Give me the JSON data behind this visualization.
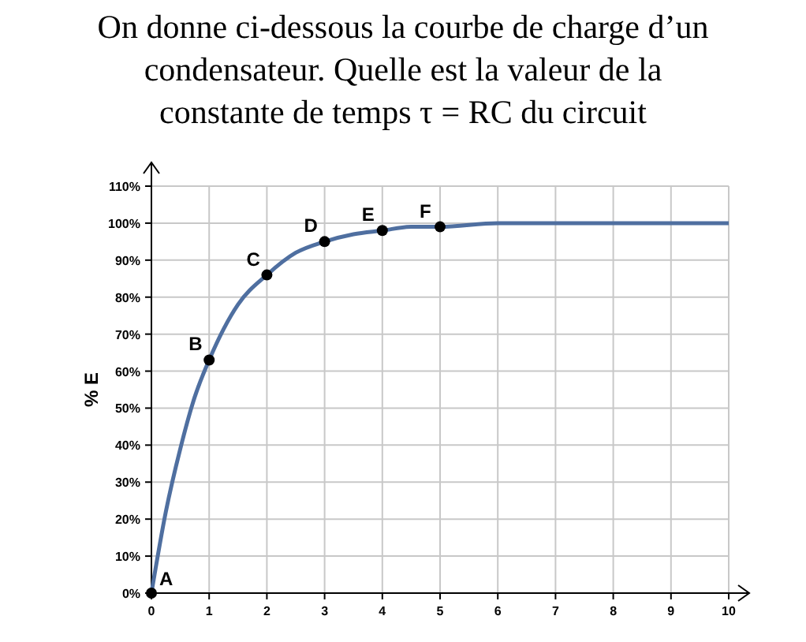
{
  "chart_data": {
    "type": "line",
    "title": "On donne ci-dessous la courbe de charge d’un condensateur. Quelle est la valeur de la constante de temps τ = RC du circuit",
    "ylabel": "% E",
    "xlim": [
      0,
      10
    ],
    "xticks": [
      0,
      1,
      2,
      3,
      4,
      5,
      6,
      7,
      8,
      9,
      10
    ],
    "ylim": [
      0,
      110
    ],
    "yticks": [
      {
        "value": 0,
        "label": "0%"
      },
      {
        "value": 10,
        "label": "10%"
      },
      {
        "value": 20,
        "label": "20%"
      },
      {
        "value": 30,
        "label": "30%"
      },
      {
        "value": 40,
        "label": "40%"
      },
      {
        "value": 50,
        "label": "50%"
      },
      {
        "value": 60,
        "label": "60%"
      },
      {
        "value": 70,
        "label": "70%"
      },
      {
        "value": 80,
        "label": "80%"
      },
      {
        "value": 90,
        "label": "90%"
      },
      {
        "value": 100,
        "label": "100%"
      },
      {
        "value": 110,
        "label": "110%"
      }
    ],
    "grid": true,
    "series": [
      {
        "color": "#4f6fa0",
        "marker": "none",
        "x": [
          0,
          0.25,
          0.5,
          0.75,
          1,
          1.5,
          2,
          2.5,
          3,
          3.5,
          4,
          4.5,
          5,
          6,
          7,
          8,
          9,
          10
        ],
        "values": [
          0,
          22,
          39,
          53,
          63,
          78,
          86,
          92,
          95,
          97,
          98,
          99,
          99,
          100,
          100,
          100,
          100,
          100
        ]
      },
      {
        "type": "scatter",
        "color": "#000000",
        "marker": "circle",
        "x": [
          0,
          1,
          2,
          3,
          4,
          5
        ],
        "values": [
          0,
          63,
          86,
          95,
          98,
          99
        ]
      }
    ],
    "annotations": [
      {
        "text": "A",
        "x": 0,
        "y": 0
      },
      {
        "text": "B",
        "x": 1,
        "y": 63
      },
      {
        "text": "C",
        "x": 2,
        "y": 86
      },
      {
        "text": "D",
        "x": 3,
        "y": 95
      },
      {
        "text": "E",
        "x": 4,
        "y": 98
      },
      {
        "text": "F",
        "x": 5,
        "y": 99
      }
    ]
  }
}
